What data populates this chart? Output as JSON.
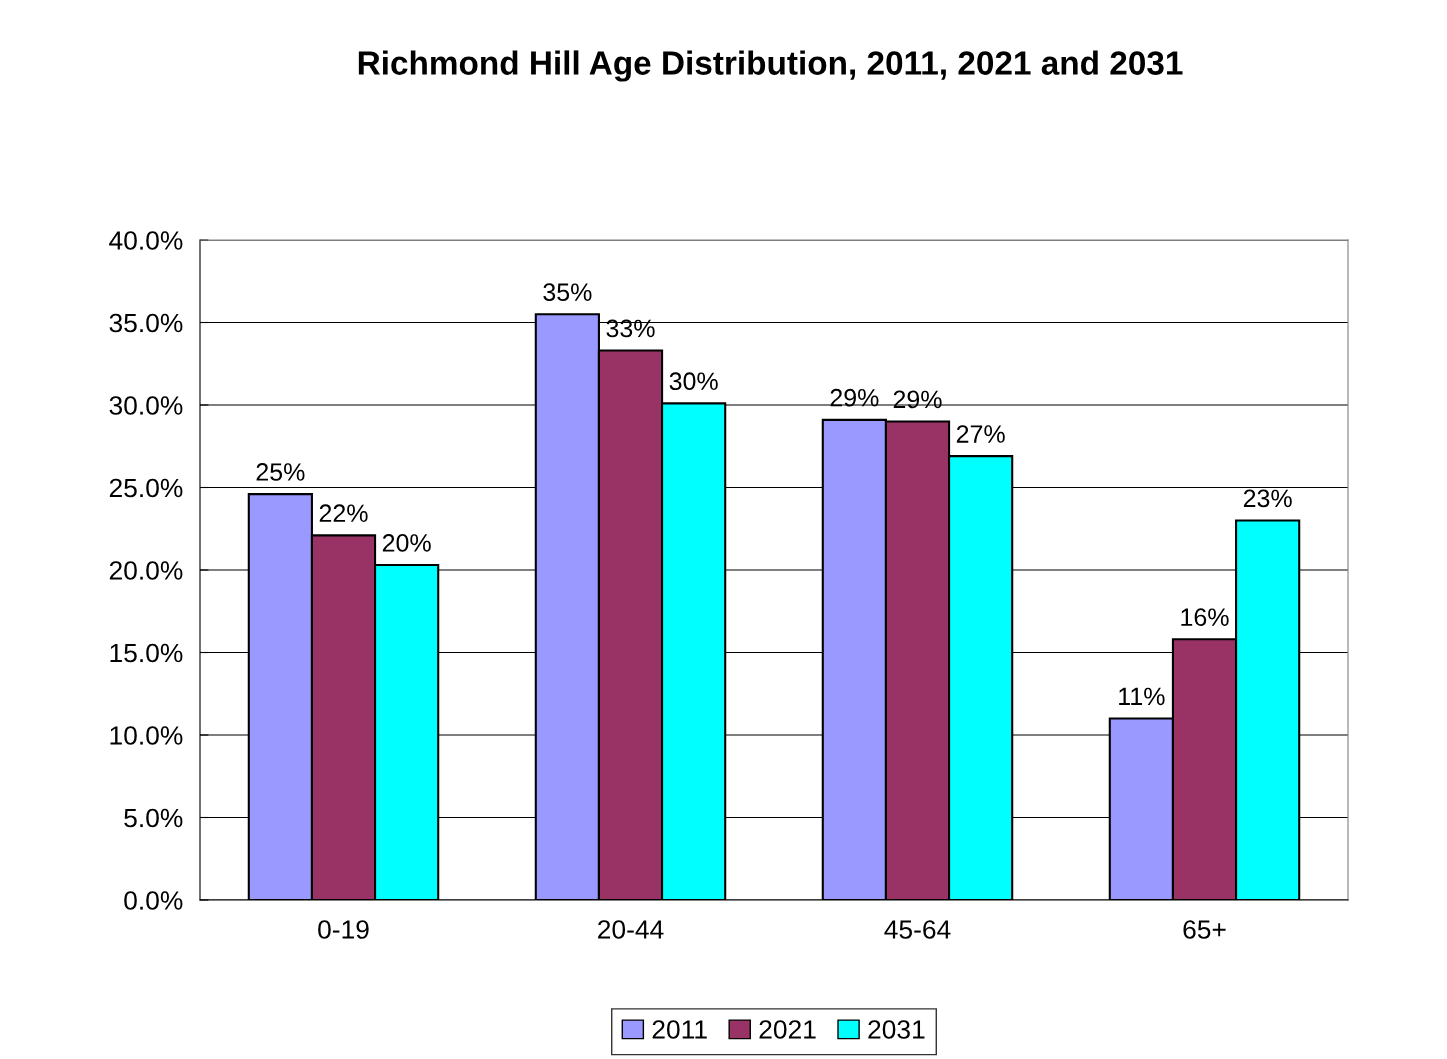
{
  "chart_data": {
    "type": "bar",
    "title": "Richmond Hill Age Distribution, 2011, 2021 and 2031",
    "categories": [
      "0-19",
      "20-44",
      "45-64",
      "65+"
    ],
    "series": [
      {
        "name": "2011",
        "color": "#9999ff",
        "values": [
          24.6,
          35.5,
          29.1,
          11.0
        ],
        "value_labels": [
          "25%",
          "35%",
          "29%",
          "11%"
        ]
      },
      {
        "name": "2021",
        "color": "#993366",
        "values": [
          22.1,
          33.3,
          29.0,
          15.8
        ],
        "value_labels": [
          "22%",
          "33%",
          "29%",
          "16%"
        ]
      },
      {
        "name": "2031",
        "color": "#00ffff",
        "values": [
          20.3,
          30.1,
          26.9,
          23.0
        ],
        "value_labels": [
          "20%",
          "30%",
          "27%",
          "23%"
        ]
      }
    ],
    "ylim": [
      0,
      40
    ],
    "yticks": [
      {
        "value": 0,
        "label": "0.0%"
      },
      {
        "value": 5,
        "label": "5.0%"
      },
      {
        "value": 10,
        "label": "10.0%"
      },
      {
        "value": 15,
        "label": "15.0%"
      },
      {
        "value": 20,
        "label": "20.0%"
      },
      {
        "value": 25,
        "label": "25.0%"
      },
      {
        "value": 30,
        "label": "30.0%"
      },
      {
        "value": 35,
        "label": "35.0%"
      },
      {
        "value": 40,
        "label": "40.0%"
      }
    ],
    "grid": "y",
    "legend": "bottom"
  }
}
